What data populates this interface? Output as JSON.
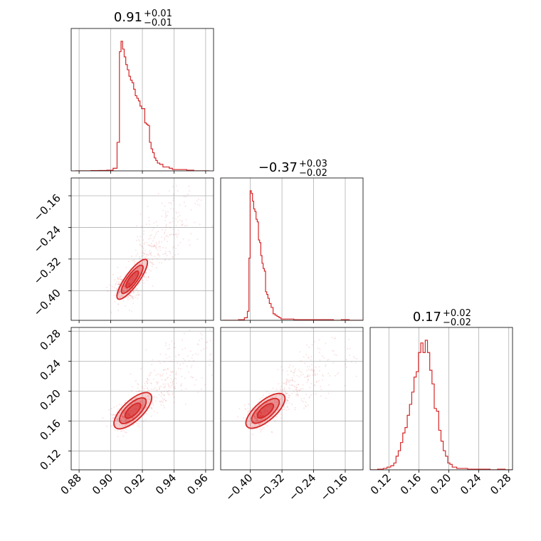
{
  "chart_data": {
    "type": "corner",
    "color": "#d62728",
    "params": [
      {
        "title_value": "0.91",
        "err_plus": "+0.01",
        "err_minus": "−0.01",
        "range": [
          0.875,
          0.965
        ],
        "ticks": [
          0.88,
          0.9,
          0.92,
          0.94,
          0.96
        ],
        "tick_labels": [
          "0.88",
          "0.90",
          "0.92",
          "0.94",
          "0.96"
        ]
      },
      {
        "title_value": "−0.37",
        "err_plus": "+0.03",
        "err_minus": "−0.02",
        "range": [
          -0.475,
          -0.115
        ],
        "ticks": [
          -0.4,
          -0.32,
          -0.24,
          -0.16
        ],
        "tick_labels": [
          "−0.40",
          "−0.32",
          "−0.24",
          "−0.16"
        ]
      },
      {
        "title_value": "0.17",
        "err_plus": "+0.02",
        "err_minus": "−0.02",
        "range": [
          0.095,
          0.285
        ],
        "ticks": [
          0.12,
          0.16,
          0.2,
          0.24,
          0.28
        ],
        "tick_labels": [
          "0.12",
          "0.16",
          "0.20",
          "0.24",
          "0.28"
        ]
      }
    ],
    "histograms": [
      {
        "param": 0,
        "bin_centers": [
          0.88,
          0.885,
          0.89,
          0.895,
          0.9,
          0.903,
          0.905,
          0.906,
          0.907,
          0.908,
          0.909,
          0.91,
          0.911,
          0.912,
          0.913,
          0.914,
          0.915,
          0.916,
          0.917,
          0.918,
          0.919,
          0.92,
          0.921,
          0.922,
          0.923,
          0.924,
          0.925,
          0.926,
          0.927,
          0.928,
          0.929,
          0.93,
          0.932,
          0.934,
          0.936,
          0.938,
          0.94,
          0.943,
          0.946,
          0.95,
          0.955,
          0.96
        ],
        "counts": [
          0,
          0,
          0.2,
          0.3,
          0.5,
          2,
          22,
          92,
          100,
          94,
          88,
          82,
          78,
          73,
          70,
          68,
          63,
          58,
          56,
          54,
          50,
          48,
          48,
          37,
          36,
          35,
          22,
          17,
          14,
          10,
          8,
          6,
          5,
          3,
          3,
          2,
          1,
          1,
          1,
          0.5,
          0,
          0
        ]
      },
      {
        "param": 1,
        "bin_centers": [
          -0.46,
          -0.44,
          -0.42,
          -0.41,
          -0.405,
          -0.402,
          -0.399,
          -0.396,
          -0.393,
          -0.39,
          -0.387,
          -0.384,
          -0.381,
          -0.378,
          -0.375,
          -0.372,
          -0.369,
          -0.366,
          -0.363,
          -0.36,
          -0.357,
          -0.354,
          -0.35,
          -0.345,
          -0.34,
          -0.335,
          -0.33,
          -0.325,
          -0.32,
          -0.31,
          -0.3,
          -0.28,
          -0.26,
          -0.24,
          -0.22,
          -0.2,
          -0.18,
          -0.16,
          -0.14,
          -0.12
        ],
        "counts": [
          0,
          0,
          0.5,
          2,
          7,
          48,
          100,
          98,
          92,
          86,
          84,
          78,
          76,
          62,
          60,
          50,
          44,
          40,
          38,
          22,
          20,
          17,
          13,
          10,
          5,
          4,
          3,
          2,
          1,
          1,
          1,
          0.5,
          0.5,
          0.5,
          0.5,
          0.5,
          0,
          0.5,
          0,
          0
        ]
      },
      {
        "param": 2,
        "bin_centers": [
          0.1,
          0.11,
          0.115,
          0.12,
          0.125,
          0.128,
          0.131,
          0.134,
          0.137,
          0.14,
          0.143,
          0.146,
          0.149,
          0.152,
          0.155,
          0.158,
          0.161,
          0.164,
          0.167,
          0.17,
          0.173,
          0.176,
          0.179,
          0.182,
          0.185,
          0.188,
          0.191,
          0.194,
          0.197,
          0.2,
          0.203,
          0.206,
          0.209,
          0.212,
          0.215,
          0.22,
          0.23,
          0.24,
          0.25,
          0.26,
          0.27,
          0.28
        ],
        "counts": [
          0,
          0.5,
          1,
          2,
          3,
          5,
          10,
          14,
          20,
          27,
          31,
          40,
          48,
          57,
          68,
          72,
          86,
          93,
          86,
          95,
          86,
          73,
          63,
          45,
          43,
          29,
          21,
          14,
          10,
          5,
          4,
          2,
          2,
          1,
          1,
          1,
          0.5,
          0.5,
          0.5,
          0,
          0.5,
          0
        ]
      }
    ],
    "joint_2d": [
      {
        "x_param": 0,
        "y_param": 1,
        "ridge_slope": 5.5,
        "center": [
          0.912,
          -0.38
        ]
      },
      {
        "x_param": 0,
        "y_param": 2,
        "ridge_slope": 2.0,
        "center": [
          0.912,
          0.17
        ]
      },
      {
        "x_param": 1,
        "y_param": 2,
        "ridge_slope": 0.45,
        "center": [
          -0.37,
          0.17
        ]
      }
    ],
    "grid": true,
    "title": "",
    "xlabel": "",
    "ylabel": ""
  }
}
